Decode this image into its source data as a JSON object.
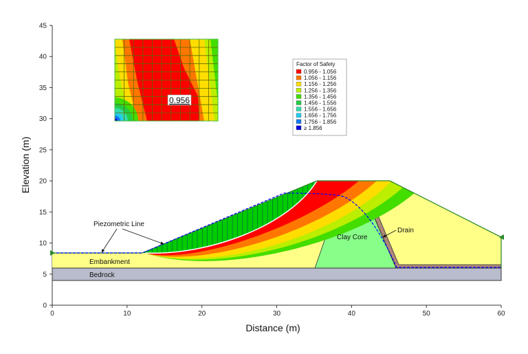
{
  "axes": {
    "x_title": "Distance (m)",
    "y_title": "Elevation (m)",
    "x_ticks": [
      "0",
      "10",
      "20",
      "30",
      "40",
      "50",
      "60"
    ],
    "y_ticks": [
      "0",
      "5",
      "10",
      "15",
      "20",
      "25",
      "30",
      "35",
      "40",
      "45"
    ],
    "x_range": [
      0,
      60
    ],
    "y_range": [
      0,
      45
    ]
  },
  "labels": {
    "piezometric_line": "Piezometric Line",
    "embankment": "Embankment",
    "bedrock": "Bedrock",
    "clay_core": "Clay Core",
    "drain": "Drain"
  },
  "inset": {
    "min_fos_label": "0.956"
  },
  "legend": {
    "title": "Factor of Safety",
    "items": [
      {
        "label": "0.956 - 1.056",
        "color": "#ff0000"
      },
      {
        "label": "1.056 - 1.156",
        "color": "#ff7700"
      },
      {
        "label": "1.156 - 1.256",
        "color": "#ffdd00"
      },
      {
        "label": "1.256 - 1.356",
        "color": "#bbee00"
      },
      {
        "label": "1.356 - 1.456",
        "color": "#44dd00"
      },
      {
        "label": "1.456 - 1.556",
        "color": "#22cc44"
      },
      {
        "label": "1.556 - 1.656",
        "color": "#33ddaa"
      },
      {
        "label": "1.656 - 1.756",
        "color": "#22ccee"
      },
      {
        "label": "1.756 - 1.856",
        "color": "#1177ee"
      },
      {
        "label": "≥ 1.856",
        "color": "#0000dd"
      }
    ]
  },
  "colors": {
    "embankment": "#ffff88",
    "bedrock": "#b8bccc",
    "clay_core": "#88ff88",
    "drain": "#b08878",
    "sliding_mass": "#00cc00",
    "piezometric": "#0000ff"
  }
}
